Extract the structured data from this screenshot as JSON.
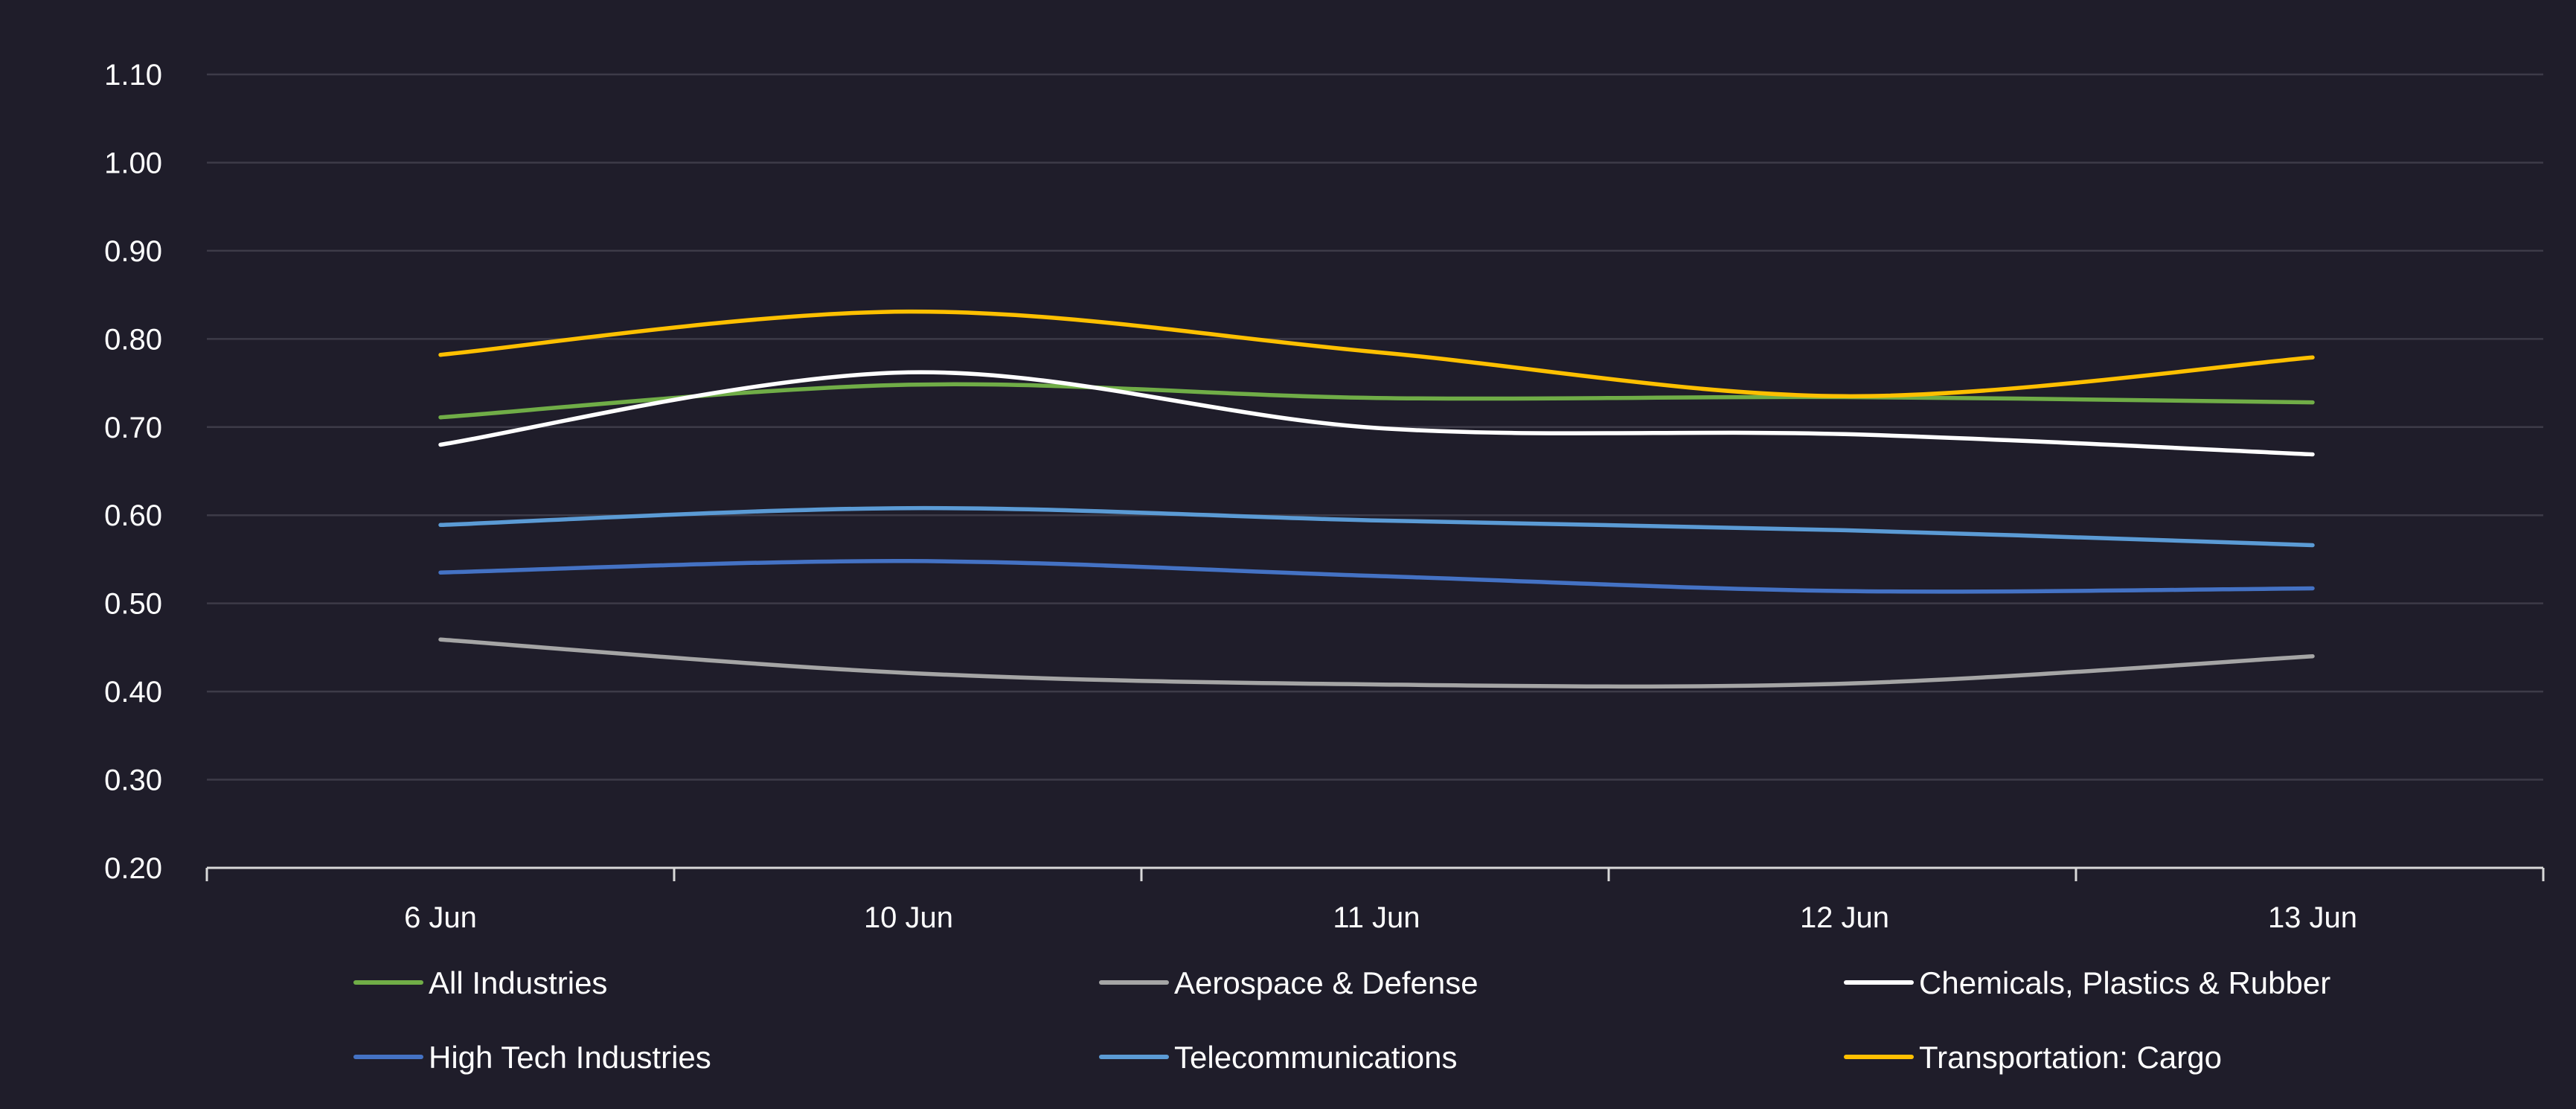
{
  "chart_data": {
    "type": "line",
    "title": "",
    "xlabel": "",
    "ylabel": "",
    "categories": [
      "6 Jun",
      "10 Jun",
      "11 Jun",
      "12 Jun",
      "13 Jun"
    ],
    "ylim": [
      0.2,
      1.1
    ],
    "y_ticks": [
      "0.20",
      "0.30",
      "0.40",
      "0.50",
      "0.60",
      "0.70",
      "0.80",
      "0.90",
      "1.00",
      "1.10"
    ],
    "grid": true,
    "smooth": true,
    "legend_position": "bottom",
    "series": [
      {
        "name": "All Industries",
        "color": "#70ad47",
        "values": [
          0.711,
          0.748,
          0.733,
          0.734,
          0.728
        ]
      },
      {
        "name": "Aerospace & Defense",
        "color": "#a5a5a5",
        "values": [
          0.459,
          0.421,
          0.408,
          0.409,
          0.44
        ]
      },
      {
        "name": "Chemicals, Plastics & Rubber",
        "color": "#ffffff",
        "values": [
          0.68,
          0.762,
          0.699,
          0.692,
          0.669
        ]
      },
      {
        "name": "High Tech Industries",
        "color": "#4472c4",
        "values": [
          0.535,
          0.548,
          0.531,
          0.514,
          0.517
        ]
      },
      {
        "name": "Telecommunications",
        "color": "#5b9bd5",
        "values": [
          0.589,
          0.608,
          0.594,
          0.583,
          0.566
        ]
      },
      {
        "name": "Transportation: Cargo",
        "color": "#ffc000",
        "values": [
          0.782,
          0.831,
          0.785,
          0.735,
          0.779
        ]
      }
    ]
  }
}
